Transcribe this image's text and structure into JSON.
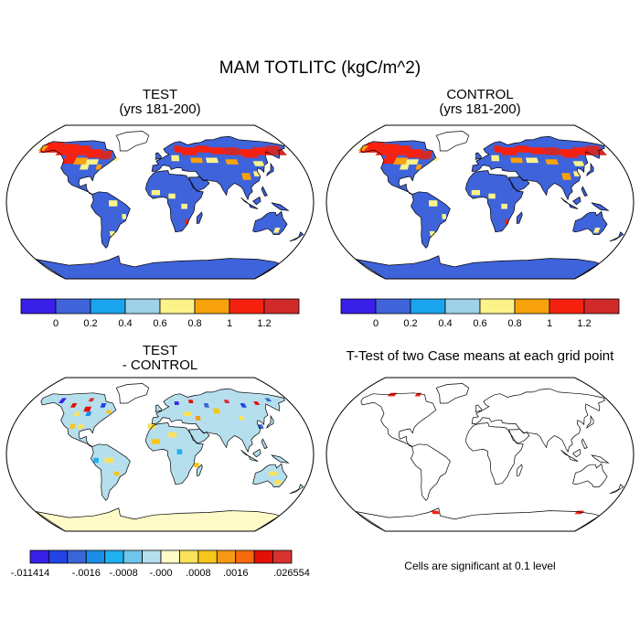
{
  "title": "MAM TOTLITC (kgC/m^2)",
  "panels": {
    "test": {
      "title": "TEST",
      "subtitle": "(yrs 181-200)"
    },
    "control": {
      "title": "CONTROL",
      "subtitle": "(yrs 181-200)"
    },
    "diff": {
      "title": "TEST",
      "subtitle": "- CONTROL"
    },
    "ttest": {
      "title": "T-Test of two Case means at each grid point",
      "note": "Cells are significant at 0.1 level"
    }
  },
  "colorbar_main": {
    "colors": [
      "#3a1fe8",
      "#3f63da",
      "#19a4ee",
      "#9fd2e8",
      "#fbf38a",
      "#f7a20c",
      "#f7210f",
      "#d12a2a"
    ],
    "labels": [
      "0",
      "0.2",
      "0.4",
      "0.6",
      "0.8",
      "1",
      "1.2"
    ]
  },
  "colorbar_diff": {
    "colors": [
      "#3a1fe8",
      "#2342e6",
      "#3a67d8",
      "#1a8ee6",
      "#1fb0f0",
      "#6fc6ec",
      "#b6dfee",
      "#fffbc8",
      "#fbe25a",
      "#f8c51c",
      "#f79915",
      "#f76a0f",
      "#e31008",
      "#d6322e"
    ],
    "labels": [
      "-.011414",
      "-.0016",
      "-.0008",
      "-.000",
      ".0008",
      ".0016",
      ".026554"
    ]
  },
  "map_colors": {
    "background": "#ffffff",
    "coast": "#000000",
    "test_land": "#3f63da",
    "test_high": "#f7210f",
    "diff_land": "#b6dfee",
    "diff_antarctica": "#fffbc8",
    "significant": "#f7210f"
  }
}
